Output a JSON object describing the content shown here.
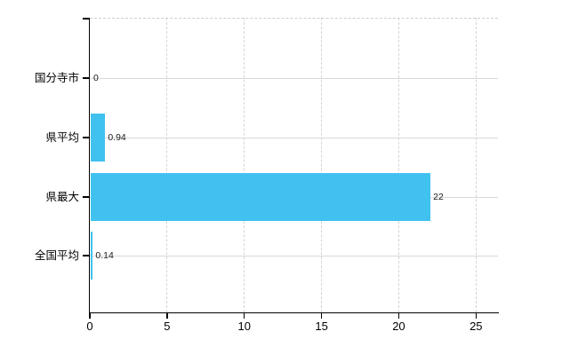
{
  "chart_data": {
    "type": "bar",
    "orientation": "horizontal",
    "title": "",
    "categories": [
      "国分寺市",
      "県平均",
      "県最大",
      "全国平均"
    ],
    "values": [
      0,
      0.94,
      22,
      0.14
    ],
    "value_labels": [
      "0",
      "0.94",
      "22",
      "0.14"
    ],
    "x_tick_labels": [
      "0",
      "5",
      "10",
      "15",
      "20",
      "25"
    ],
    "x_tick_values": [
      0,
      5,
      10,
      15,
      20,
      25
    ],
    "xlim": [
      0,
      26.4
    ],
    "grid": true,
    "legend_position": "none",
    "colors": {
      "bar": "#40c1f0",
      "grid_horizontal": "#d9d9d9",
      "grid_vertical_dashed": "#d7d2d7",
      "axis": "#000000",
      "text": "#000000",
      "background": "#ffffff"
    }
  }
}
